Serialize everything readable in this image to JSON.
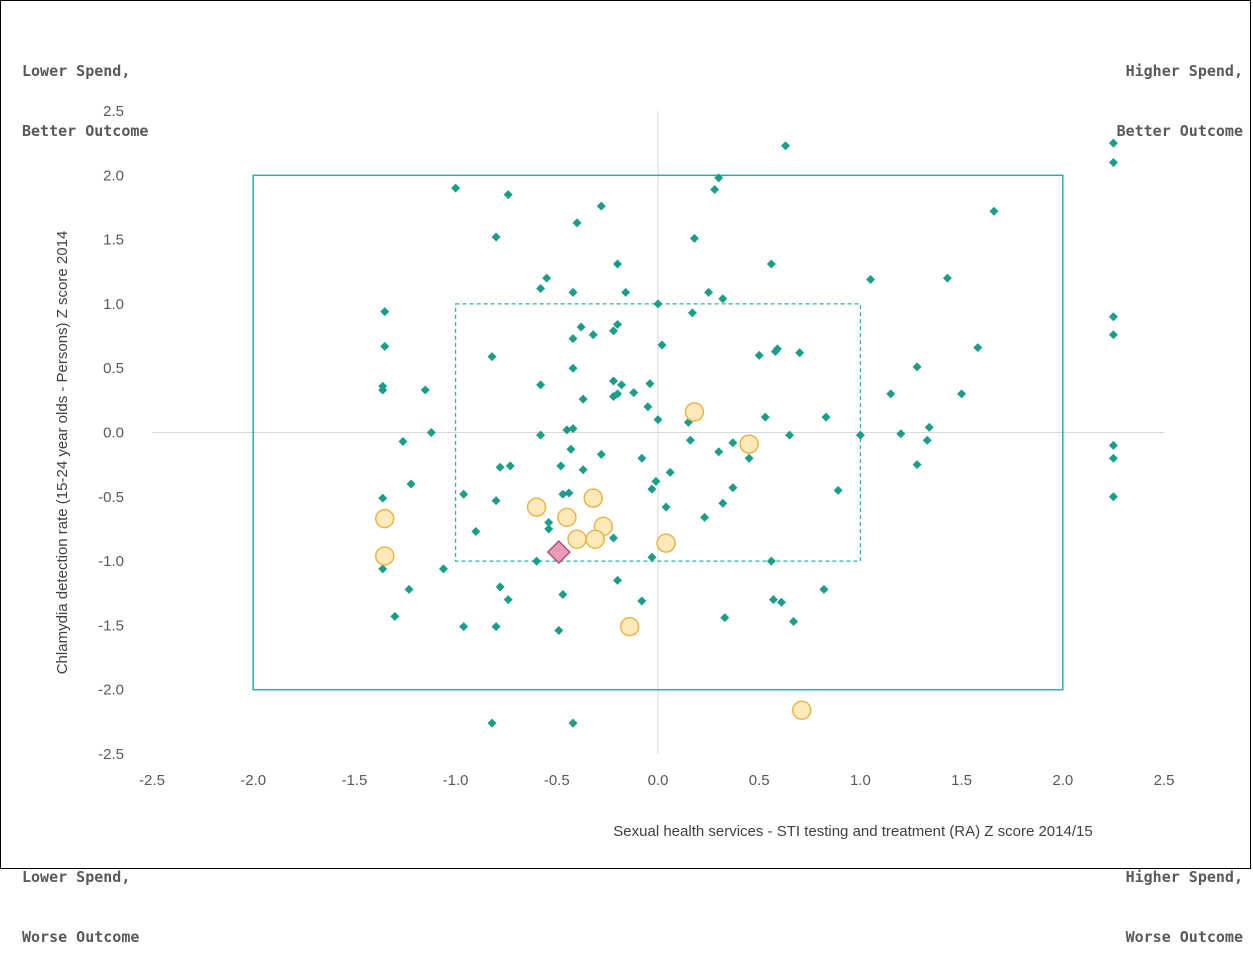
{
  "corners": {
    "top_left": [
      "Lower Spend,",
      "Better Outcome"
    ],
    "top_right": [
      "Higher Spend,",
      "Better Outcome"
    ],
    "bottom_left": [
      "Lower Spend,",
      "Worse Outcome"
    ],
    "bottom_right": [
      "Higher Spend,",
      "Worse Outcome"
    ]
  },
  "chart_data": {
    "type": "scatter",
    "title": "",
    "xlabel": "Sexual health services - STI testing and treatment (RA) Z score 2014/15",
    "ylabel": "Chlamydia detection rate (15-24 year olds - Persons) Z score 2014",
    "xlim": [
      -2.5,
      2.5
    ],
    "ylim": [
      -2.5,
      2.5
    ],
    "xticks": [
      "-2.5",
      "-2.0",
      "-1.5",
      "-1.0",
      "-0.5",
      "0.0",
      "0.5",
      "1.0",
      "1.5",
      "2.0",
      "2.5"
    ],
    "yticks": [
      "2.5",
      "2.0",
      "1.5",
      "1.0",
      "0.5",
      "0.0",
      "-0.5",
      "-1.0",
      "-1.5",
      "-2.0",
      "-2.5"
    ],
    "grid": false,
    "colors": {
      "diamond_fill": "#1a9e8a",
      "circle_fill": "#fde9b9",
      "circle_stroke": "#e8b54a",
      "highlight_fill": "#e99ab8",
      "highlight_stroke": "#b0507a",
      "box": "#2bb0a8",
      "axis_line": "#d9d9d9"
    },
    "boxes": [
      {
        "name": "outer",
        "style": "solid",
        "x": [
          -2,
          2
        ],
        "y": [
          -2,
          2
        ]
      },
      {
        "name": "inner",
        "style": "dashed",
        "x": [
          -1,
          1
        ],
        "y": [
          -1,
          1
        ]
      }
    ],
    "series": [
      {
        "marker": "diamond",
        "points": [
          [
            2.25,
            2.25
          ],
          [
            2.25,
            2.1
          ],
          [
            2.25,
            0.9
          ],
          [
            2.25,
            0.76
          ],
          [
            2.25,
            -0.1
          ],
          [
            2.25,
            -0.2
          ],
          [
            2.25,
            -0.5
          ],
          [
            0.63,
            2.23
          ],
          [
            -1.0,
            1.9
          ],
          [
            -0.74,
            1.85
          ],
          [
            0.3,
            1.98
          ],
          [
            0.28,
            1.89
          ],
          [
            -0.28,
            1.76
          ],
          [
            1.66,
            1.72
          ],
          [
            -0.4,
            1.63
          ],
          [
            -0.8,
            1.52
          ],
          [
            0.18,
            1.51
          ],
          [
            -0.55,
            1.2
          ],
          [
            -0.2,
            1.31
          ],
          [
            0.56,
            1.31
          ],
          [
            -0.58,
            1.12
          ],
          [
            -0.42,
            1.09
          ],
          [
            -0.16,
            1.09
          ],
          [
            0.25,
            1.09
          ],
          [
            0.32,
            1.04
          ],
          [
            0.0,
            1.0
          ],
          [
            1.05,
            1.19
          ],
          [
            1.43,
            1.2
          ],
          [
            -1.35,
            0.94
          ],
          [
            -0.38,
            0.82
          ],
          [
            -0.32,
            0.76
          ],
          [
            -0.22,
            0.79
          ],
          [
            -0.2,
            0.84
          ],
          [
            0.17,
            0.93
          ],
          [
            -1.35,
            0.67
          ],
          [
            0.02,
            0.68
          ],
          [
            -0.42,
            0.73
          ],
          [
            -0.82,
            0.59
          ],
          [
            0.58,
            0.63
          ],
          [
            0.5,
            0.6
          ],
          [
            0.7,
            0.62
          ],
          [
            0.59,
            0.65
          ],
          [
            1.58,
            0.66
          ],
          [
            -1.36,
            0.36
          ],
          [
            -1.36,
            0.33
          ],
          [
            -1.15,
            0.33
          ],
          [
            -0.58,
            0.37
          ],
          [
            -0.42,
            0.5
          ],
          [
            -0.22,
            0.4
          ],
          [
            -0.18,
            0.37
          ],
          [
            -0.2,
            0.3
          ],
          [
            -0.22,
            0.28
          ],
          [
            -0.04,
            0.38
          ],
          [
            -0.12,
            0.31
          ],
          [
            -0.37,
            0.26
          ],
          [
            1.15,
            0.3
          ],
          [
            1.28,
            0.51
          ],
          [
            1.5,
            0.3
          ],
          [
            -0.05,
            0.2
          ],
          [
            0.0,
            0.1
          ],
          [
            0.15,
            0.08
          ],
          [
            0.53,
            0.12
          ],
          [
            0.83,
            0.12
          ],
          [
            -1.12,
            0.0
          ],
          [
            -1.26,
            -0.07
          ],
          [
            -0.58,
            -0.02
          ],
          [
            -0.45,
            0.02
          ],
          [
            -0.42,
            0.03
          ],
          [
            -0.43,
            -0.13
          ],
          [
            0.16,
            -0.06
          ],
          [
            0.37,
            -0.08
          ],
          [
            0.3,
            -0.15
          ],
          [
            0.45,
            -0.2
          ],
          [
            0.65,
            -0.02
          ],
          [
            1.0,
            -0.02
          ],
          [
            1.2,
            -0.01
          ],
          [
            1.34,
            0.04
          ],
          [
            1.33,
            -0.06
          ],
          [
            1.28,
            -0.25
          ],
          [
            -1.36,
            -0.51
          ],
          [
            -1.22,
            -0.4
          ],
          [
            -0.96,
            -0.48
          ],
          [
            -0.78,
            -0.27
          ],
          [
            -0.73,
            -0.26
          ],
          [
            -0.8,
            -0.53
          ],
          [
            -0.48,
            -0.26
          ],
          [
            -0.37,
            -0.29
          ],
          [
            -0.28,
            -0.17
          ],
          [
            -0.44,
            -0.47
          ],
          [
            -0.47,
            -0.48
          ],
          [
            -0.54,
            -0.7
          ],
          [
            -0.54,
            -0.75
          ],
          [
            -0.08,
            -0.2
          ],
          [
            0.06,
            -0.31
          ],
          [
            -0.01,
            -0.38
          ],
          [
            -0.03,
            -0.44
          ],
          [
            0.04,
            -0.58
          ],
          [
            0.23,
            -0.66
          ],
          [
            0.32,
            -0.55
          ],
          [
            0.37,
            -0.43
          ],
          [
            0.89,
            -0.45
          ],
          [
            -0.9,
            -0.77
          ],
          [
            -1.36,
            -1.06
          ],
          [
            -1.06,
            -1.06
          ],
          [
            -1.3,
            -1.43
          ],
          [
            -1.23,
            -1.22
          ],
          [
            -0.6,
            -1.0
          ],
          [
            -0.22,
            -0.82
          ],
          [
            -0.03,
            -0.97
          ],
          [
            0.56,
            -1.0
          ],
          [
            -0.78,
            -1.2
          ],
          [
            -0.74,
            -1.3
          ],
          [
            -0.2,
            -1.15
          ],
          [
            -0.47,
            -1.26
          ],
          [
            -0.08,
            -1.31
          ],
          [
            -0.96,
            -1.51
          ],
          [
            -0.8,
            -1.51
          ],
          [
            -0.49,
            -1.54
          ],
          [
            0.33,
            -1.44
          ],
          [
            0.57,
            -1.3
          ],
          [
            0.61,
            -1.32
          ],
          [
            0.67,
            -1.47
          ],
          [
            0.82,
            -1.22
          ],
          [
            -0.82,
            -2.26
          ],
          [
            -0.42,
            -2.26
          ]
        ]
      },
      {
        "marker": "circle",
        "points": [
          [
            0.18,
            0.16
          ],
          [
            0.45,
            -0.09
          ],
          [
            -0.32,
            -0.51
          ],
          [
            -0.6,
            -0.58
          ],
          [
            -0.45,
            -0.66
          ],
          [
            -0.27,
            -0.73
          ],
          [
            -0.4,
            -0.83
          ],
          [
            -0.31,
            -0.83
          ],
          [
            0.04,
            -0.86
          ],
          [
            -1.35,
            -0.67
          ],
          [
            -1.35,
            -0.96
          ],
          [
            -0.14,
            -1.51
          ],
          [
            0.71,
            -2.16
          ]
        ]
      },
      {
        "marker": "highlight-diamond",
        "points": [
          [
            -0.49,
            -0.93
          ]
        ]
      }
    ]
  }
}
